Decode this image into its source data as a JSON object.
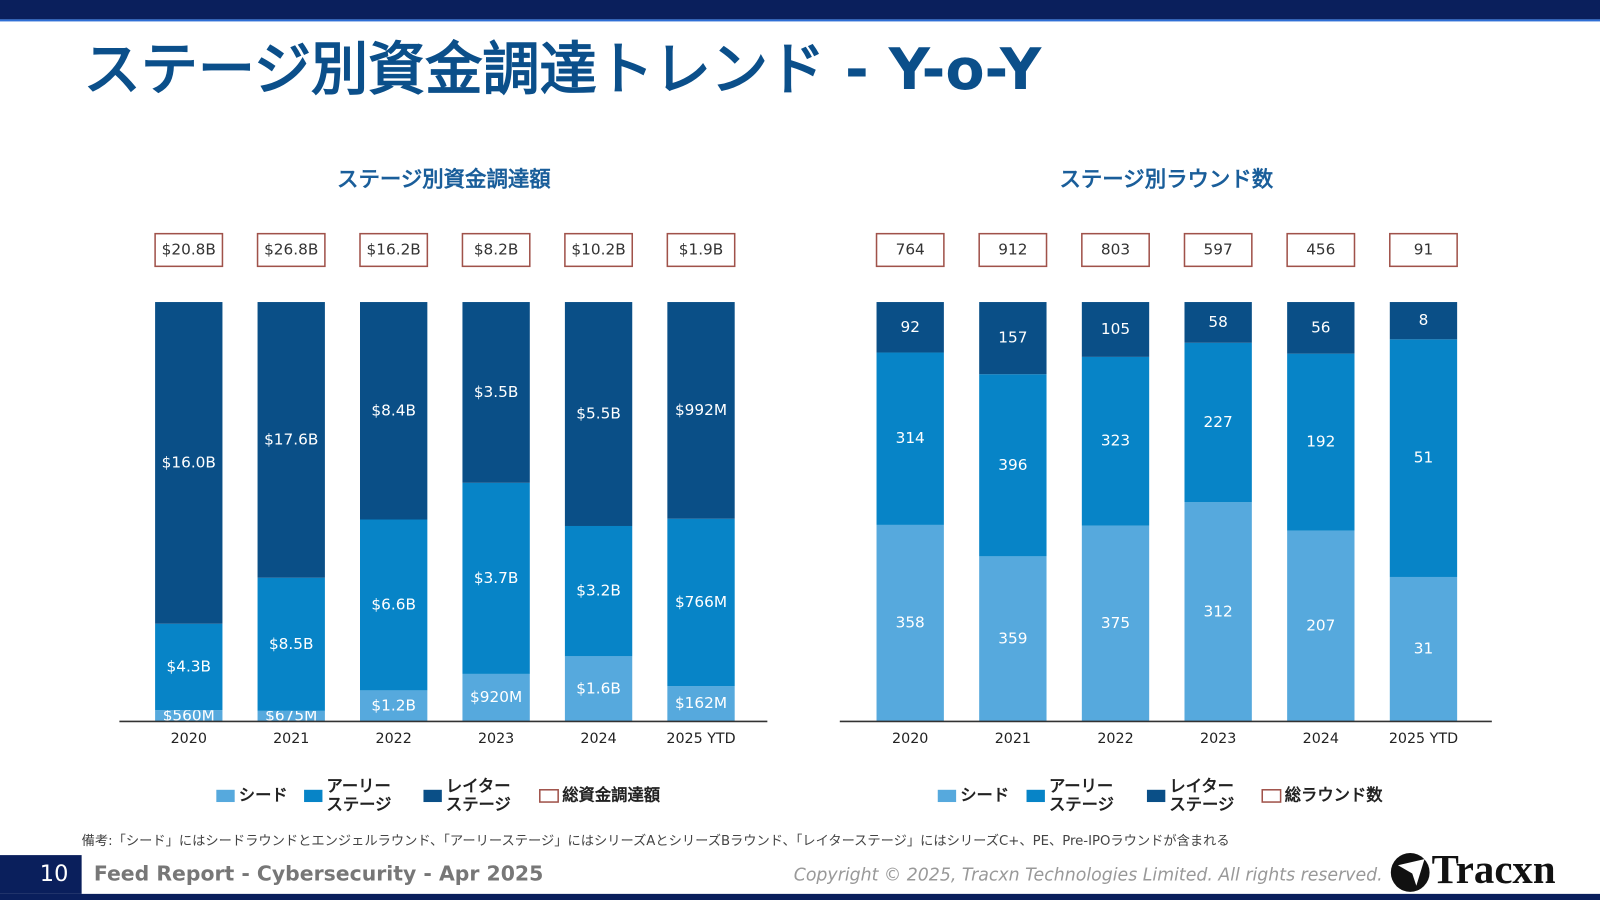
{
  "title": "ステージ別資金調達トレンド - Y-o-Y",
  "note": "備考:「シード」にはシードラウンドとエンジェルラウンド、「アーリーステージ」にはシリーズAとシリーズBラウンド、「レイターステージ」にはシリーズC+、PE、Pre-IPOラウンドが含まれる",
  "footer": {
    "page": "10",
    "report": "Feed Report - Cybersecurity - Apr 2025",
    "copyright": "Copyright © 2025, Tracxn Technologies Limited. All rights reserved.",
    "logo": "Tracxn"
  },
  "chart_data": [
    {
      "type": "bar",
      "stacked": true,
      "normalized": true,
      "title": "ステージ別資金調達額",
      "categories": [
        "2020",
        "2021",
        "2022",
        "2023",
        "2024",
        "2025 YTD"
      ],
      "series": [
        {
          "name": "シード",
          "color": "#56a9dd",
          "values": [
            0.56,
            0.675,
            1.2,
            0.92,
            1.6,
            0.162
          ],
          "value_labels": [
            "$560M",
            "$675M",
            "$1.2B",
            "$920M",
            "$1.6B",
            "$162M"
          ]
        },
        {
          "name": "アーリー\nステージ",
          "color": "#0784c7",
          "values": [
            4.3,
            8.5,
            6.6,
            3.7,
            3.2,
            0.766
          ],
          "value_labels": [
            "$4.3B",
            "$8.5B",
            "$6.6B",
            "$3.7B",
            "$3.2B",
            "$766M"
          ]
        },
        {
          "name": "レイター\nステージ",
          "color": "#0a4f87",
          "values": [
            16.0,
            17.6,
            8.4,
            3.5,
            5.5,
            0.992
          ],
          "value_labels": [
            "$16.0B",
            "$17.6B",
            "$8.4B",
            "$3.5B",
            "$5.5B",
            "$992M"
          ]
        }
      ],
      "totals": {
        "name": "総資金調達額",
        "color": "#a0524a",
        "values": [
          20.8,
          26.8,
          16.2,
          8.2,
          10.2,
          1.9
        ],
        "value_labels": [
          "$20.8B",
          "$26.8B",
          "$16.2B",
          "$8.2B",
          "$10.2B",
          "$1.9B"
        ]
      }
    },
    {
      "type": "bar",
      "stacked": true,
      "normalized": true,
      "title": "ステージ別ラウンド数",
      "categories": [
        "2020",
        "2021",
        "2022",
        "2023",
        "2024",
        "2025 YTD"
      ],
      "series": [
        {
          "name": "シード",
          "color": "#56a9dd",
          "values": [
            358,
            359,
            375,
            312,
            207,
            31
          ]
        },
        {
          "name": "アーリー\nステージ",
          "color": "#0784c7",
          "values": [
            314,
            396,
            323,
            227,
            192,
            51
          ]
        },
        {
          "name": "レイター\nステージ",
          "color": "#0a4f87",
          "values": [
            92,
            157,
            105,
            58,
            56,
            8
          ]
        }
      ],
      "totals": {
        "name": "総ラウンド数",
        "color": "#a0524a",
        "values": [
          764,
          912,
          803,
          597,
          456,
          91
        ]
      }
    }
  ]
}
